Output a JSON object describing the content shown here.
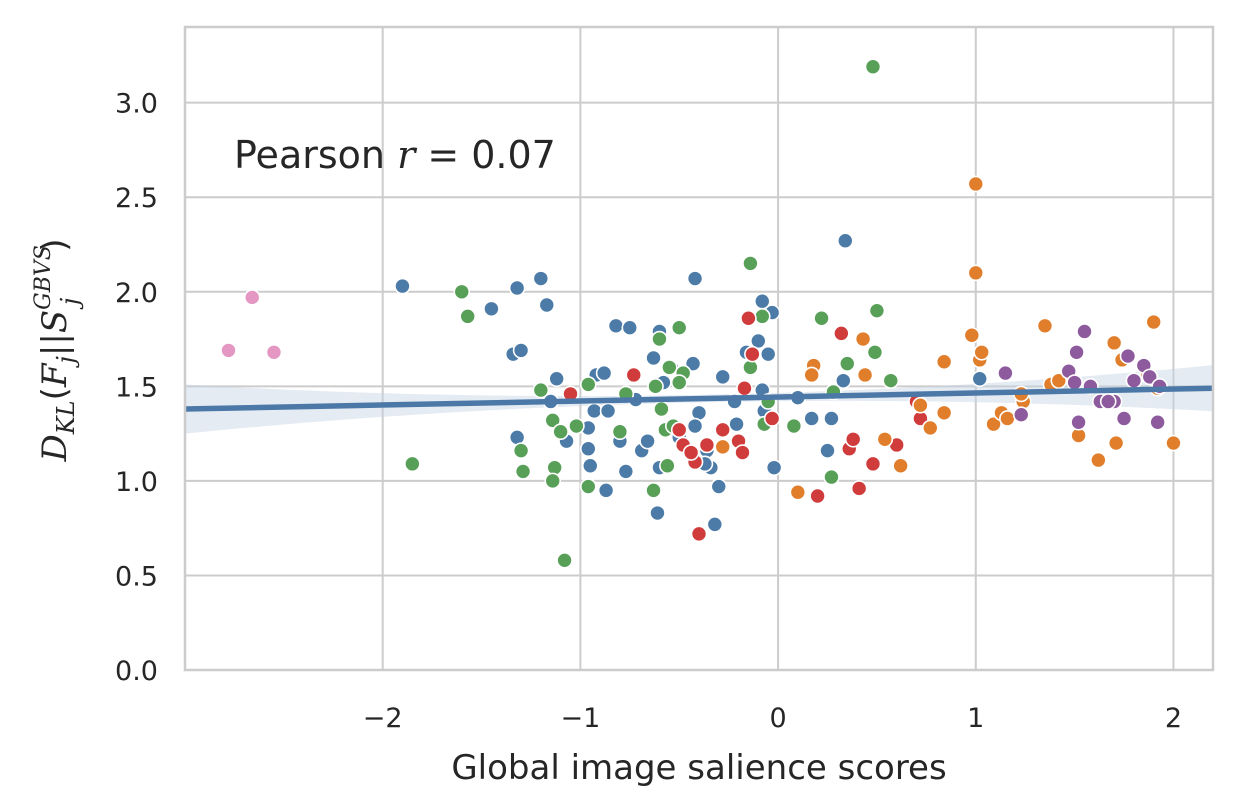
{
  "chart_data": {
    "type": "scatter",
    "title": "",
    "xlabel": "Global image salience scores",
    "ylabel": "D_KL(F_j||S_j^GBVS)",
    "annotation": {
      "prefix": "Pearson ",
      "var": "r",
      "rest": " = 0.07"
    },
    "xlim": [
      -3.0,
      2.2
    ],
    "ylim": [
      0.0,
      3.4
    ],
    "xticks": [
      -2,
      -1,
      0,
      1,
      2
    ],
    "xtick_labels": [
      "−2",
      "−1",
      "0",
      "1",
      "2"
    ],
    "yticks": [
      0.0,
      0.5,
      1.0,
      1.5,
      2.0,
      2.5,
      3.0
    ],
    "ytick_labels": [
      "0.0",
      "0.5",
      "1.0",
      "1.5",
      "2.0",
      "2.5",
      "3.0"
    ],
    "grid": true,
    "regression": {
      "x": [
        -3.0,
        2.2
      ],
      "y": [
        1.38,
        1.49
      ],
      "color": "#4c78a8",
      "ci_color": "#c5d3e2"
    },
    "series": [
      {
        "color": "#4c7ba8",
        "points": [
          [
            -1.9,
            2.03
          ],
          [
            -1.45,
            1.91
          ],
          [
            -1.32,
            2.02
          ],
          [
            -1.2,
            2.07
          ],
          [
            -1.17,
            1.93
          ],
          [
            -1.34,
            1.67
          ],
          [
            -1.3,
            1.69
          ],
          [
            -1.12,
            1.54
          ],
          [
            -1.15,
            1.42
          ],
          [
            -1.07,
            1.21
          ],
          [
            -0.96,
            1.17
          ],
          [
            -0.95,
            1.08
          ],
          [
            -0.96,
            1.28
          ],
          [
            -0.93,
            1.37
          ],
          [
            -0.92,
            1.56
          ],
          [
            -0.86,
            1.37
          ],
          [
            -0.87,
            0.95
          ],
          [
            -0.82,
            1.82
          ],
          [
            -0.8,
            1.21
          ],
          [
            -0.77,
            1.05
          ],
          [
            -0.72,
            1.43
          ],
          [
            -0.69,
            1.16
          ],
          [
            -0.66,
            1.21
          ],
          [
            -0.63,
            1.65
          ],
          [
            -0.6,
            1.07
          ],
          [
            -0.58,
            1.52
          ],
          [
            -0.54,
            1.6
          ],
          [
            -0.61,
            0.83
          ],
          [
            -0.42,
            2.07
          ],
          [
            -0.43,
            1.62
          ],
          [
            -0.4,
            1.36
          ],
          [
            -0.36,
            1.16
          ],
          [
            -0.34,
            1.07
          ],
          [
            -0.3,
            0.97
          ],
          [
            -0.32,
            0.77
          ],
          [
            -0.28,
            1.55
          ],
          [
            -0.22,
            1.42
          ],
          [
            -0.21,
            1.3
          ],
          [
            -0.16,
            1.68
          ],
          [
            -0.08,
            1.95
          ],
          [
            -0.05,
            1.67
          ],
          [
            -0.08,
            1.48
          ],
          [
            -0.07,
            1.37
          ],
          [
            -0.03,
            1.89
          ],
          [
            -0.02,
            1.07
          ],
          [
            0.1,
            1.44
          ],
          [
            0.17,
            1.33
          ],
          [
            0.34,
            2.27
          ],
          [
            0.33,
            1.53
          ],
          [
            0.27,
            1.33
          ],
          [
            0.25,
            1.16
          ],
          [
            1.02,
            1.54
          ],
          [
            -1.32,
            1.23
          ],
          [
            -0.88,
            1.57
          ],
          [
            -0.6,
            1.79
          ],
          [
            -0.42,
            1.29
          ],
          [
            -0.1,
            1.74
          ],
          [
            -0.5,
            1.23
          ],
          [
            -0.75,
            1.81
          ],
          [
            -0.37,
            1.09
          ]
        ]
      },
      {
        "color": "#58a058",
        "points": [
          [
            -1.85,
            1.09
          ],
          [
            -1.6,
            2.0
          ],
          [
            -1.57,
            1.87
          ],
          [
            -1.3,
            1.16
          ],
          [
            -1.29,
            1.05
          ],
          [
            -1.2,
            1.48
          ],
          [
            -1.14,
            1.32
          ],
          [
            -1.13,
            1.07
          ],
          [
            -1.1,
            1.26
          ],
          [
            -1.14,
            1.0
          ],
          [
            -1.08,
            0.58
          ],
          [
            -0.96,
            1.51
          ],
          [
            -0.96,
            0.97
          ],
          [
            -0.8,
            1.26
          ],
          [
            -0.63,
            0.95
          ],
          [
            -0.6,
            1.75
          ],
          [
            -0.57,
            1.27
          ],
          [
            -0.55,
            1.6
          ],
          [
            -0.5,
            1.81
          ],
          [
            -0.48,
            1.57
          ],
          [
            -0.59,
            1.38
          ],
          [
            -0.53,
            1.29
          ],
          [
            -0.5,
            1.52
          ],
          [
            -0.14,
            2.15
          ],
          [
            -0.14,
            1.6
          ],
          [
            -0.08,
            1.87
          ],
          [
            -0.05,
            1.42
          ],
          [
            -0.07,
            1.3
          ],
          [
            0.08,
            1.29
          ],
          [
            0.22,
            1.86
          ],
          [
            0.28,
            1.47
          ],
          [
            0.27,
            1.02
          ],
          [
            0.35,
            1.62
          ],
          [
            0.48,
            3.19
          ],
          [
            0.49,
            1.68
          ],
          [
            0.5,
            1.9
          ],
          [
            0.57,
            1.53
          ],
          [
            -0.62,
            1.5
          ],
          [
            -0.77,
            1.46
          ],
          [
            -1.02,
            1.29
          ],
          [
            -0.56,
            1.08
          ]
        ]
      },
      {
        "color": "#d03b3b",
        "points": [
          [
            -1.05,
            1.46
          ],
          [
            -0.73,
            1.56
          ],
          [
            -0.5,
            1.27
          ],
          [
            -0.48,
            1.19
          ],
          [
            -0.42,
            1.1
          ],
          [
            -0.4,
            0.72
          ],
          [
            -0.36,
            1.19
          ],
          [
            -0.28,
            1.27
          ],
          [
            -0.2,
            1.21
          ],
          [
            -0.17,
            1.49
          ],
          [
            -0.15,
            1.86
          ],
          [
            -0.13,
            1.67
          ],
          [
            -0.03,
            1.33
          ],
          [
            0.2,
            0.92
          ],
          [
            0.32,
            1.78
          ],
          [
            0.36,
            1.17
          ],
          [
            0.38,
            1.22
          ],
          [
            0.41,
            0.96
          ],
          [
            0.48,
            1.09
          ],
          [
            0.6,
            1.19
          ],
          [
            0.72,
            1.33
          ],
          [
            0.7,
            1.42
          ],
          [
            -0.44,
            1.15
          ],
          [
            -0.18,
            1.15
          ]
        ]
      },
      {
        "color": "#e07e2c",
        "points": [
          [
            -0.28,
            1.18
          ],
          [
            0.1,
            0.94
          ],
          [
            0.18,
            1.61
          ],
          [
            0.17,
            1.56
          ],
          [
            0.43,
            1.75
          ],
          [
            0.44,
            1.56
          ],
          [
            0.54,
            1.22
          ],
          [
            0.62,
            1.08
          ],
          [
            0.72,
            1.4
          ],
          [
            0.77,
            1.28
          ],
          [
            0.84,
            1.63
          ],
          [
            0.84,
            1.36
          ],
          [
            0.98,
            1.77
          ],
          [
            1.0,
            2.57
          ],
          [
            1.0,
            2.1
          ],
          [
            1.02,
            1.64
          ],
          [
            1.03,
            1.68
          ],
          [
            1.09,
            1.3
          ],
          [
            1.13,
            1.36
          ],
          [
            1.16,
            1.33
          ],
          [
            1.24,
            1.42
          ],
          [
            1.35,
            1.82
          ],
          [
            1.38,
            1.51
          ],
          [
            1.42,
            1.53
          ],
          [
            1.52,
            1.24
          ],
          [
            1.62,
            1.11
          ],
          [
            1.7,
            1.73
          ],
          [
            1.71,
            1.2
          ],
          [
            1.74,
            1.64
          ],
          [
            1.87,
            1.56
          ],
          [
            1.9,
            1.84
          ],
          [
            1.92,
            1.49
          ],
          [
            2.0,
            1.2
          ],
          [
            1.23,
            1.46
          ]
        ]
      },
      {
        "color": "#8e5a9e",
        "points": [
          [
            1.15,
            1.57
          ],
          [
            1.23,
            1.35
          ],
          [
            1.47,
            1.58
          ],
          [
            1.5,
            1.52
          ],
          [
            1.51,
            1.68
          ],
          [
            1.52,
            1.31
          ],
          [
            1.55,
            1.79
          ],
          [
            1.58,
            1.5
          ],
          [
            1.63,
            1.42
          ],
          [
            1.7,
            1.42
          ],
          [
            1.75,
            1.33
          ],
          [
            1.77,
            1.66
          ],
          [
            1.8,
            1.53
          ],
          [
            1.85,
            1.61
          ],
          [
            1.88,
            1.55
          ],
          [
            1.93,
            1.5
          ],
          [
            1.92,
            1.31
          ],
          [
            1.67,
            1.42
          ]
        ]
      },
      {
        "color": "#e497c3",
        "points": [
          [
            -2.78,
            1.69
          ],
          [
            -2.66,
            1.97
          ],
          [
            -2.55,
            1.68
          ]
        ]
      }
    ]
  }
}
